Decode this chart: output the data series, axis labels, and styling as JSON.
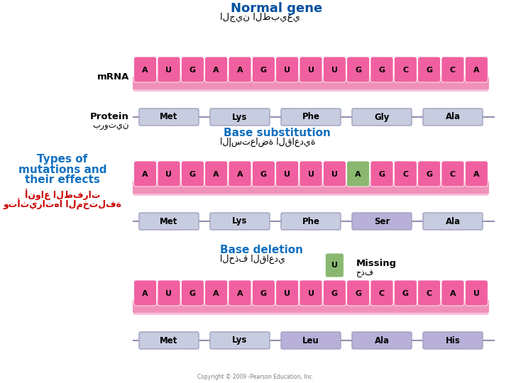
{
  "bg_color": "#ffffff",
  "title1": "Normal gene",
  "title1_arabic": "الجين الطبيعي",
  "title2": "Base substitution",
  "title2_arabic": "الإستعاضة القاعدية",
  "title3": "Base deletion",
  "title3_arabic": "الحذف القاعدي",
  "side_title_line1": "Types of",
  "side_title_line2": "mutations and",
  "side_title_line3": "their effects",
  "side_arabic1": "أنواع الطفرات",
  "side_arabic2": "وتأثيراتها المختلفة",
  "mrna_label": "mRNA",
  "protein_label": "Protein",
  "protein_arabic": "بروتين",
  "missing_label": "Missing",
  "missing_arabic": "حذف",
  "seq1": [
    "A",
    "U",
    "G",
    "A",
    "A",
    "G",
    "U",
    "U",
    "U",
    "G",
    "G",
    "C",
    "G",
    "C",
    "A"
  ],
  "seq2": [
    "A",
    "U",
    "G",
    "A",
    "A",
    "G",
    "U",
    "U",
    "U",
    "A",
    "G",
    "C",
    "G",
    "C",
    "A"
  ],
  "seq3": [
    "A",
    "U",
    "G",
    "A",
    "A",
    "G",
    "U",
    "U",
    "G",
    "G",
    "C",
    "G",
    "C",
    "A",
    "U"
  ],
  "aa1": [
    "Met",
    "Lys",
    "Phe",
    "Gly",
    "Ala"
  ],
  "aa2": [
    "Met",
    "Lys",
    "Phe",
    "Ser",
    "Ala"
  ],
  "aa3": [
    "Met",
    "Lys",
    "Leu",
    "Ala",
    "His"
  ],
  "aa1_highlight": [
    false,
    false,
    false,
    false,
    false
  ],
  "aa2_highlight": [
    false,
    false,
    false,
    true,
    false
  ],
  "aa3_highlight": [
    false,
    false,
    true,
    true,
    true
  ],
  "seq2_highlight": 9,
  "seq3_missing": 8,
  "pink_dark": "#f060a0",
  "pink_mid": "#f090b8",
  "pink_light": "#f8c0d8",
  "green_base": "#8ab870",
  "blue_dark": "#0050a0",
  "blue_mid": "#1070c0",
  "red_arabic": "#cc0000",
  "aa_normal": "#c8cce0",
  "aa_highlight": "#b8b0d8",
  "copyright": "Copyright © 2009 -Pearson Education, Inc."
}
